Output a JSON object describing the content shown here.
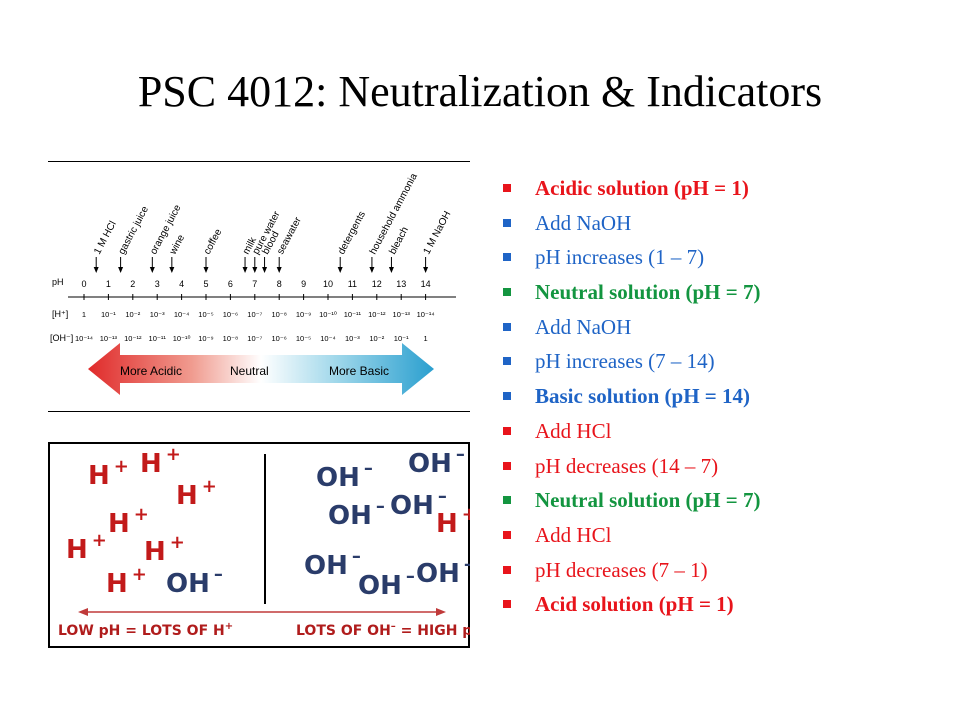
{
  "title": "PSC 4012: Neutralization & Indicators",
  "colors": {
    "red": "#e8141b",
    "blue": "#1f64c6",
    "green": "#139540",
    "dark_red": "#b01c1c"
  },
  "bullets": [
    {
      "text": "Acidic solution (pH = 1)",
      "color": "#e8141b",
      "bold": true
    },
    {
      "text": "Add NaOH",
      "color": "#1f64c6",
      "bold": false
    },
    {
      "text": "pH increases (1 – 7)",
      "color": "#1f64c6",
      "bold": false
    },
    {
      "text": "Neutral solution (pH = 7)",
      "color": "#139540",
      "bold": true
    },
    {
      "text": "Add NaOH",
      "color": "#1f64c6",
      "bold": false
    },
    {
      "text": "pH increases (7 – 14)",
      "color": "#1f64c6",
      "bold": false
    },
    {
      "text": "Basic solution (pH = 14)",
      "color": "#1f64c6",
      "bold": true
    },
    {
      "text": "Add HCl",
      "color": "#e8141b",
      "bold": false
    },
    {
      "text": "pH decreases (14 – 7)",
      "color": "#e8141b",
      "bold": false
    },
    {
      "text": "Neutral solution (pH = 7)",
      "color": "#139540",
      "bold": true
    },
    {
      "text": "Add HCl",
      "color": "#e8141b",
      "bold": false
    },
    {
      "text": "pH decreases (7 – 1)",
      "color": "#e8141b",
      "bold": false
    },
    {
      "text": "Acid solution (pH = 1)",
      "color": "#e8141b",
      "bold": true
    }
  ],
  "ph_scale": {
    "row_labels": {
      "ph": "pH",
      "h": "[H⁺]",
      "oh": "[OH⁻]"
    },
    "ph_values": [
      "0",
      "1",
      "2",
      "3",
      "4",
      "5",
      "6",
      "7",
      "8",
      "9",
      "10",
      "11",
      "12",
      "13",
      "14"
    ],
    "h_values": [
      "1",
      "10⁻¹",
      "10⁻²",
      "10⁻³",
      "10⁻⁴",
      "10⁻⁵",
      "10⁻⁶",
      "10⁻⁷",
      "10⁻⁸",
      "10⁻⁹",
      "10⁻¹⁰",
      "10⁻¹¹",
      "10⁻¹²",
      "10⁻¹³",
      "10⁻¹⁴"
    ],
    "oh_values": [
      "10⁻¹⁴",
      "10⁻¹³",
      "10⁻¹²",
      "10⁻¹¹",
      "10⁻¹⁰",
      "10⁻⁹",
      "10⁻⁸",
      "10⁻⁷",
      "10⁻⁶",
      "10⁻⁵",
      "10⁻⁴",
      "10⁻³",
      "10⁻²",
      "10⁻¹",
      "1"
    ],
    "substances": [
      {
        "name": "1 M HCl",
        "ph": 0.5
      },
      {
        "name": "gastric juice",
        "ph": 1.5
      },
      {
        "name": "orange juice",
        "ph": 2.8
      },
      {
        "name": "wine",
        "ph": 3.6
      },
      {
        "name": "coffee",
        "ph": 5.0
      },
      {
        "name": "milk",
        "ph": 6.6
      },
      {
        "name": "pure water",
        "ph": 7.0
      },
      {
        "name": "blood",
        "ph": 7.4
      },
      {
        "name": "seawater",
        "ph": 8.0
      },
      {
        "name": "detergents",
        "ph": 10.5
      },
      {
        "name": "household ammonia",
        "ph": 11.8
      },
      {
        "name": "bleach",
        "ph": 12.6
      },
      {
        "name": "1 M NaOH",
        "ph": 14.0
      }
    ],
    "arrow_labels": {
      "acidic": "More Acidic",
      "neutral": "Neutral",
      "basic": "More Basic"
    }
  },
  "ions": {
    "h_ion": "H",
    "h_charge": "+",
    "oh_ion": "OH",
    "oh_charge": "–",
    "left": [
      {
        "ion": "h"
      },
      {
        "ion": "h"
      },
      {
        "ion": "h"
      },
      {
        "ion": "h"
      },
      {
        "ion": "h"
      },
      {
        "ion": "h"
      },
      {
        "ion": "h"
      },
      {
        "ion": "oh"
      }
    ],
    "right": [
      {
        "ion": "oh"
      },
      {
        "ion": "oh"
      },
      {
        "ion": "oh"
      },
      {
        "ion": "oh"
      },
      {
        "ion": "h"
      },
      {
        "ion": "oh"
      },
      {
        "ion": "oh"
      },
      {
        "ion": "oh"
      }
    ],
    "caption_left": "LOW pH = LOTS OF H",
    "caption_left_charge": "+",
    "caption_right": "LOTS OF OH",
    "caption_right_charge": "–",
    "caption_right_tail": " = HIGH pH"
  }
}
